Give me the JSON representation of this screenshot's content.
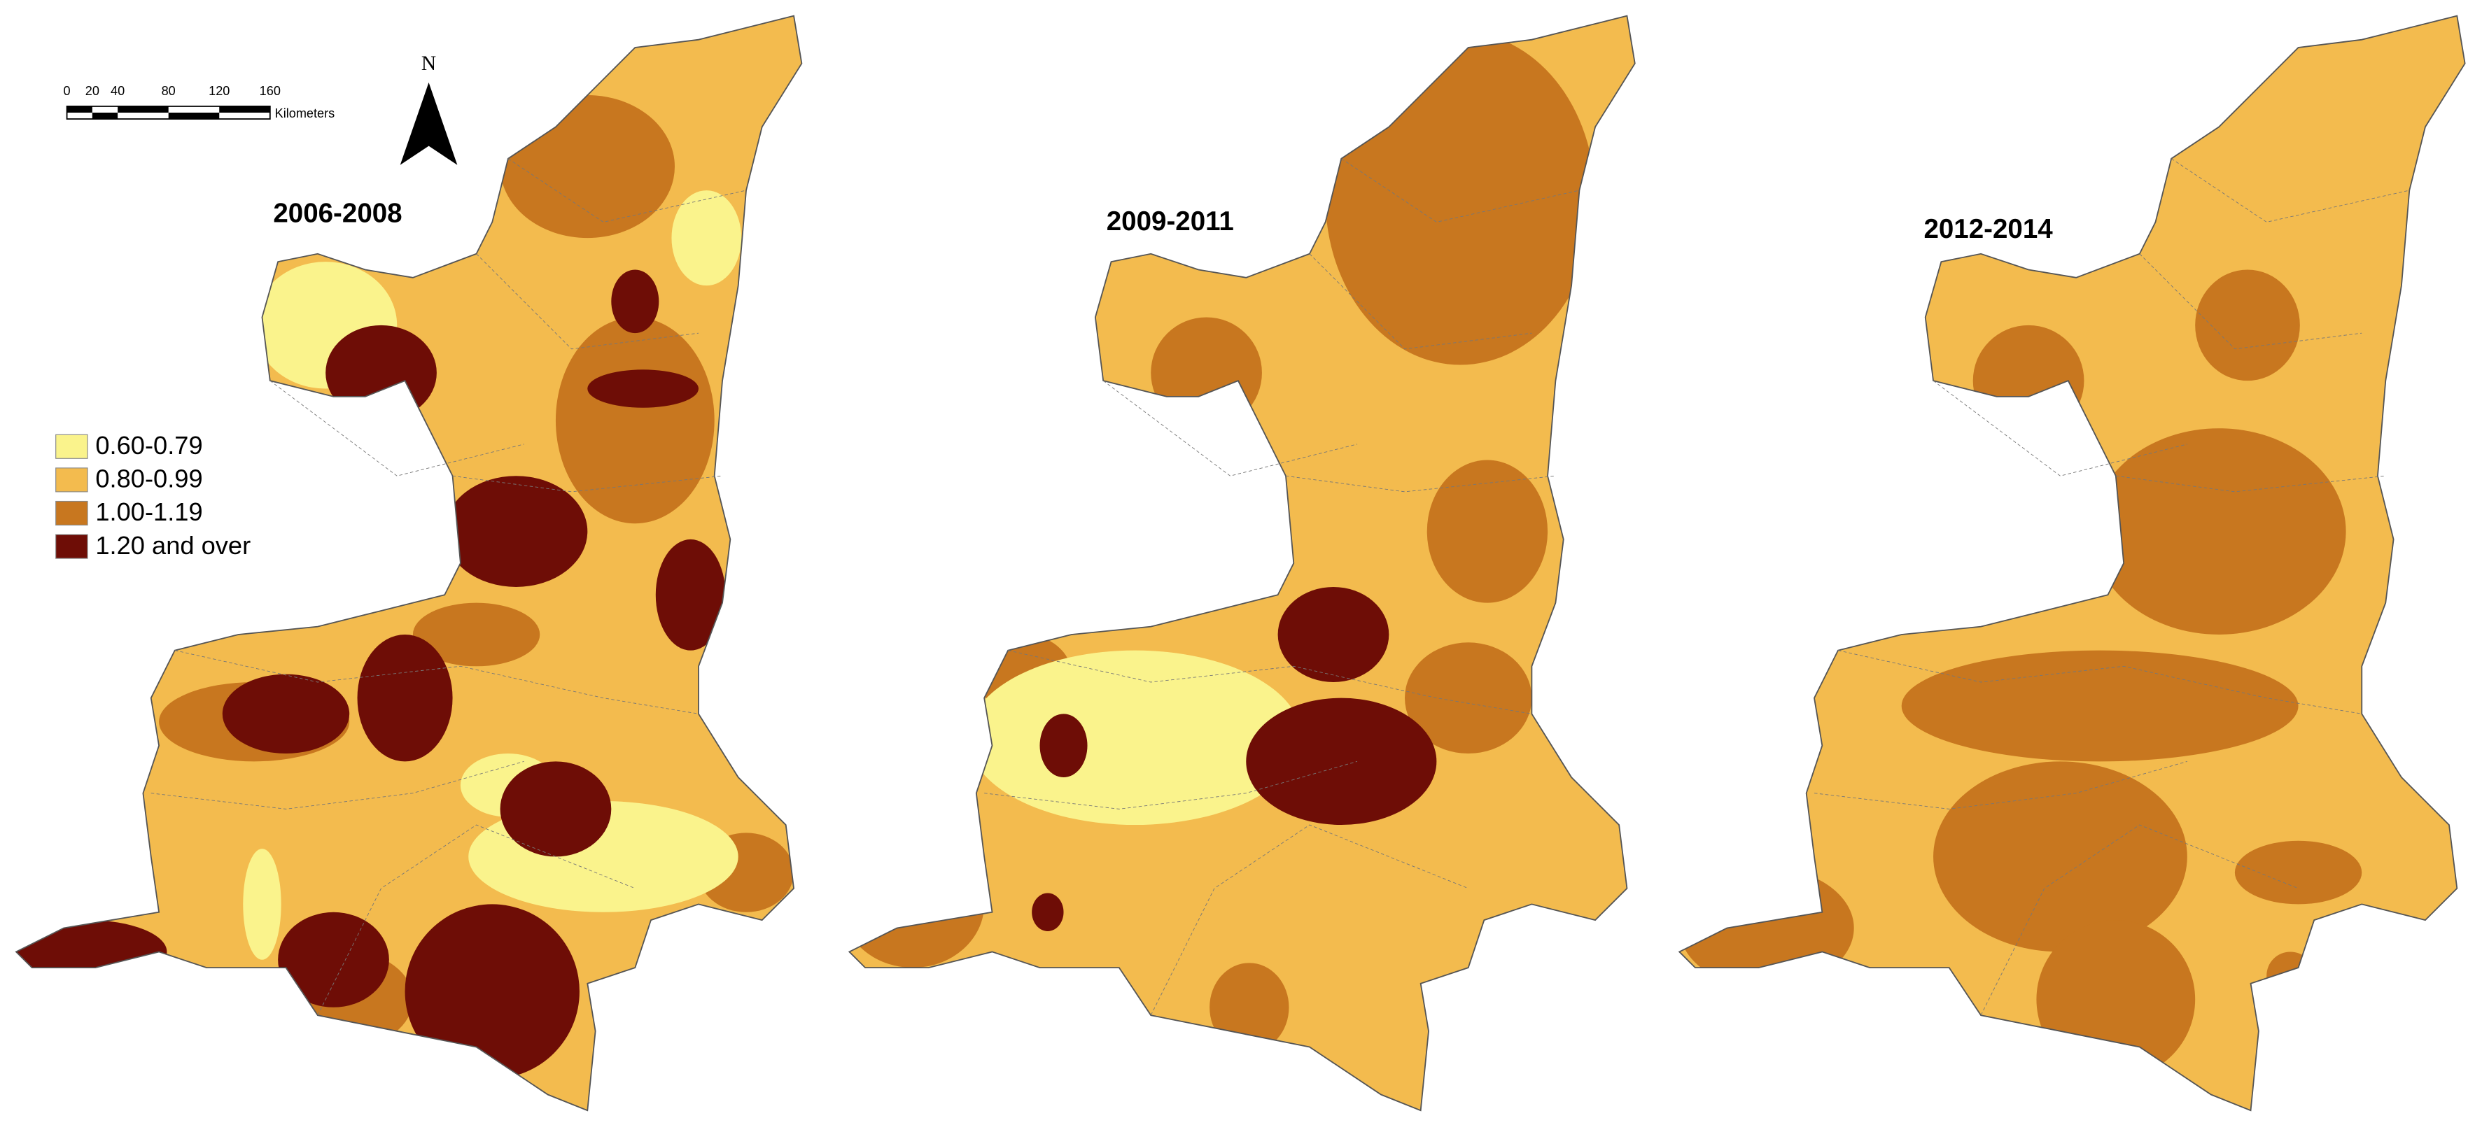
{
  "maps": [
    {
      "title": "2006-2008"
    },
    {
      "title": "2009-2011"
    },
    {
      "title": "2012-2014"
    }
  ],
  "legend": {
    "items": [
      {
        "label": "0.60-0.79",
        "color": "#faf38c"
      },
      {
        "label": "0.80-0.99",
        "color": "#f3bb4e"
      },
      {
        "label": "1.00-1.19",
        "color": "#c8771f"
      },
      {
        "label": "1.20 and over",
        "color": "#6e0d06"
      }
    ]
  },
  "scale_bar": {
    "ticks": [
      0,
      20,
      40,
      80,
      120,
      160
    ],
    "unit": "Kilometers"
  },
  "north_arrow": "N"
}
